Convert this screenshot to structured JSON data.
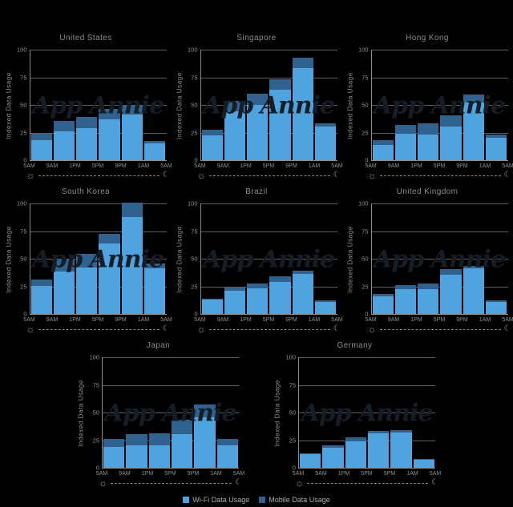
{
  "app": {
    "background": "#000000"
  },
  "colors": {
    "wifi": "#4FA3DF",
    "mobile": "#2F628F",
    "grid": "#5f5f5f",
    "axis_line": "#8d8d8d",
    "axis_text": "#8f9296",
    "title_text": "#898c90",
    "legend_text": "#a9aeb3",
    "watermark_text": "#151d26",
    "background": "#000000"
  },
  "watermark": {
    "text": "App Annie"
  },
  "axis": {
    "ylabel": "Indexed Data Usage",
    "yticks": [
      0,
      25,
      50,
      75,
      100
    ],
    "xticks": [
      "5AM",
      "9AM",
      "1PM",
      "5PM",
      "9PM",
      "1AM",
      "5AM"
    ],
    "icons": {
      "sun": "☼",
      "moon": "☾"
    }
  },
  "legend": {
    "items": [
      {
        "label": "Wi-Fi Data Usage",
        "color": "#4FA3DF"
      },
      {
        "label": "Mobile Data Usage",
        "color": "#2F628F"
      }
    ]
  },
  "layout": {
    "rows": [
      [
        0,
        1,
        2
      ],
      [
        3,
        4,
        5
      ],
      [
        6,
        7
      ]
    ]
  },
  "chart_data": [
    {
      "type": "bar",
      "stacked": true,
      "title": "United States",
      "xlabel": "",
      "ylabel": "Indexed Data Usage",
      "ylim": [
        0,
        100
      ],
      "categories": [
        "5AM-9AM",
        "9AM-1PM",
        "1PM-5PM",
        "5PM-9PM",
        "9PM-1AM",
        "1AM-5AM"
      ],
      "series": [
        {
          "name": "Wi-Fi Data Usage",
          "values": [
            18,
            26,
            29,
            37,
            41,
            15
          ]
        },
        {
          "name": "Mobile Data Usage",
          "values": [
            6,
            9,
            10,
            9,
            8,
            2
          ]
        }
      ]
    },
    {
      "type": "bar",
      "stacked": true,
      "title": "Singapore",
      "xlabel": "",
      "ylabel": "Indexed Data Usage",
      "ylim": [
        0,
        100
      ],
      "categories": [
        "5AM-9AM",
        "9AM-1PM",
        "1PM-5PM",
        "5PM-9PM",
        "9PM-1AM",
        "1AM-5AM"
      ],
      "series": [
        {
          "name": "Wi-Fi Data Usage",
          "values": [
            22,
            44,
            50,
            63,
            83,
            30
          ]
        },
        {
          "name": "Mobile Data Usage",
          "values": [
            5,
            9,
            10,
            10,
            9,
            3
          ]
        }
      ]
    },
    {
      "type": "bar",
      "stacked": true,
      "title": "Hong Kong",
      "xlabel": "",
      "ylabel": "Indexed Data Usage",
      "ylim": [
        0,
        100
      ],
      "categories": [
        "5AM-9AM",
        "9AM-1PM",
        "1PM-5PM",
        "5PM-9PM",
        "9PM-1AM",
        "1AM-5AM"
      ],
      "series": [
        {
          "name": "Wi-Fi Data Usage",
          "values": [
            14,
            24,
            23,
            30,
            52,
            20
          ]
        },
        {
          "name": "Mobile Data Usage",
          "values": [
            4,
            8,
            10,
            10,
            7,
            3
          ]
        }
      ]
    },
    {
      "type": "bar",
      "stacked": true,
      "title": "South Korea",
      "xlabel": "",
      "ylabel": "Indexed Data Usage",
      "ylim": [
        0,
        100
      ],
      "categories": [
        "5AM-9AM",
        "9AM-1PM",
        "1PM-5PM",
        "5PM-9PM",
        "9PM-1AM",
        "1AM-5AM"
      ],
      "series": [
        {
          "name": "Wi-Fi Data Usage",
          "values": [
            25,
            38,
            42,
            63,
            87,
            41
          ]
        },
        {
          "name": "Mobile Data Usage",
          "values": [
            6,
            12,
            12,
            9,
            13,
            4
          ]
        }
      ]
    },
    {
      "type": "bar",
      "stacked": true,
      "title": "Brazil",
      "xlabel": "",
      "ylabel": "Indexed Data Usage",
      "ylim": [
        0,
        100
      ],
      "categories": [
        "5AM-9AM",
        "9AM-1PM",
        "1PM-5PM",
        "5PM-9PM",
        "9PM-1AM",
        "1AM-5AM"
      ],
      "series": [
        {
          "name": "Wi-Fi Data Usage",
          "values": [
            13,
            21,
            23,
            29,
            36,
            11
          ]
        },
        {
          "name": "Mobile Data Usage",
          "values": [
            1,
            3,
            4,
            5,
            3,
            1
          ]
        }
      ]
    },
    {
      "type": "bar",
      "stacked": true,
      "title": "United Kingdom",
      "xlabel": "",
      "ylabel": "Indexed Data Usage",
      "ylim": [
        0,
        100
      ],
      "categories": [
        "5AM-9AM",
        "9AM-1PM",
        "1PM-5PM",
        "5PM-9PM",
        "9PM-1AM",
        "1AM-5AM"
      ],
      "series": [
        {
          "name": "Wi-Fi Data Usage",
          "values": [
            16,
            22,
            22,
            35,
            41,
            11
          ]
        },
        {
          "name": "Mobile Data Usage",
          "values": [
            2,
            4,
            5,
            5,
            2,
            1
          ]
        }
      ]
    },
    {
      "type": "bar",
      "stacked": true,
      "title": "Japan",
      "xlabel": "",
      "ylabel": "Indexed Data Usage",
      "ylim": [
        0,
        100
      ],
      "categories": [
        "5AM-9AM",
        "9AM-1PM",
        "1PM-5PM",
        "5PM-9PM",
        "9PM-1AM",
        "1AM-5AM"
      ],
      "series": [
        {
          "name": "Wi-Fi Data Usage",
          "values": [
            19,
            20,
            20,
            30,
            45,
            20
          ]
        },
        {
          "name": "Mobile Data Usage",
          "values": [
            7,
            10,
            11,
            13,
            12,
            6
          ]
        }
      ]
    },
    {
      "type": "bar",
      "stacked": true,
      "title": "Germany",
      "xlabel": "",
      "ylabel": "Indexed Data Usage",
      "ylim": [
        0,
        100
      ],
      "categories": [
        "5AM-9AM",
        "9AM-1PM",
        "1PM-5PM",
        "5PM-9PM",
        "9PM-1AM",
        "1AM-5AM"
      ],
      "series": [
        {
          "name": "Wi-Fi Data Usage",
          "values": [
            12,
            18,
            24,
            31,
            32,
            7
          ]
        },
        {
          "name": "Mobile Data Usage",
          "values": [
            1,
            2,
            3,
            2,
            2,
            1
          ]
        }
      ]
    }
  ]
}
